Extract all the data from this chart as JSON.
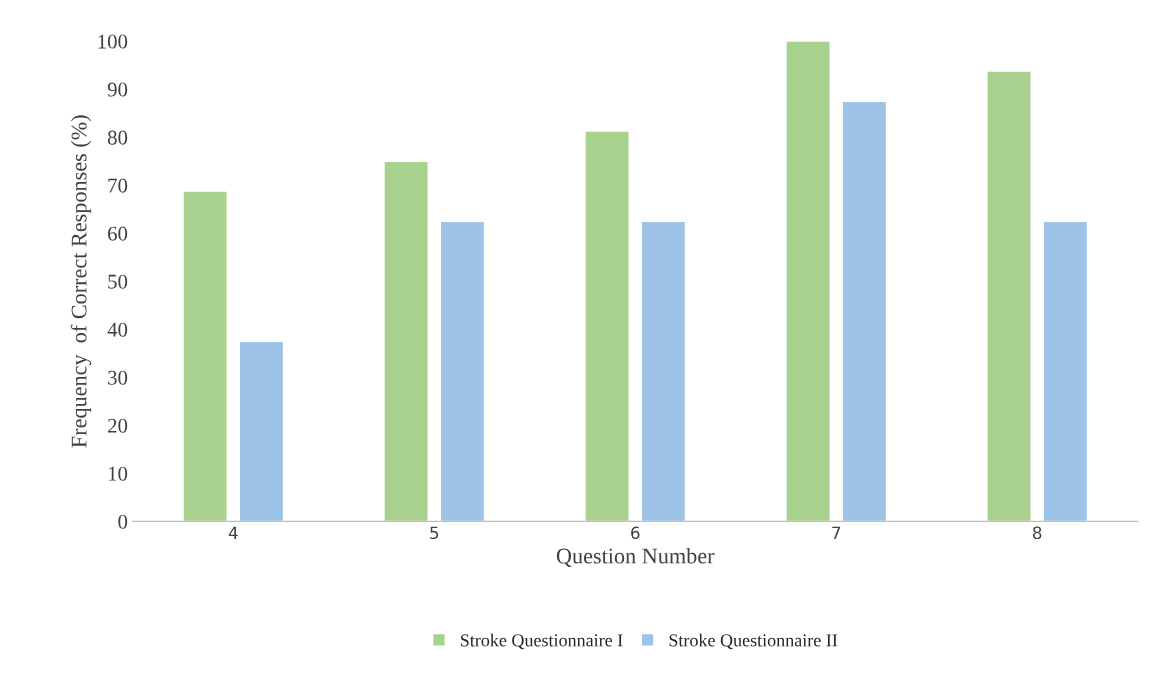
{
  "chart_data": {
    "type": "bar",
    "xlabel": "Question Number",
    "ylabel": "Frequency  of Correct Responses (%)",
    "categories": [
      "4",
      "5",
      "6",
      "7",
      "8"
    ],
    "series": [
      {
        "name": "Stroke Questionnaire I",
        "color": "#a9d18e",
        "values": [
          68.8,
          75,
          81.3,
          100,
          93.8
        ]
      },
      {
        "name": "Stroke Questionnaire II",
        "color": "#9dc3e6",
        "values": [
          37.5,
          62.5,
          62.5,
          87.5,
          62.5
        ]
      }
    ],
    "ylim": [
      0,
      100
    ],
    "yticks": [
      0,
      10,
      20,
      30,
      40,
      50,
      60,
      70,
      80,
      90,
      100
    ],
    "grid": false,
    "legend": "bottom"
  }
}
